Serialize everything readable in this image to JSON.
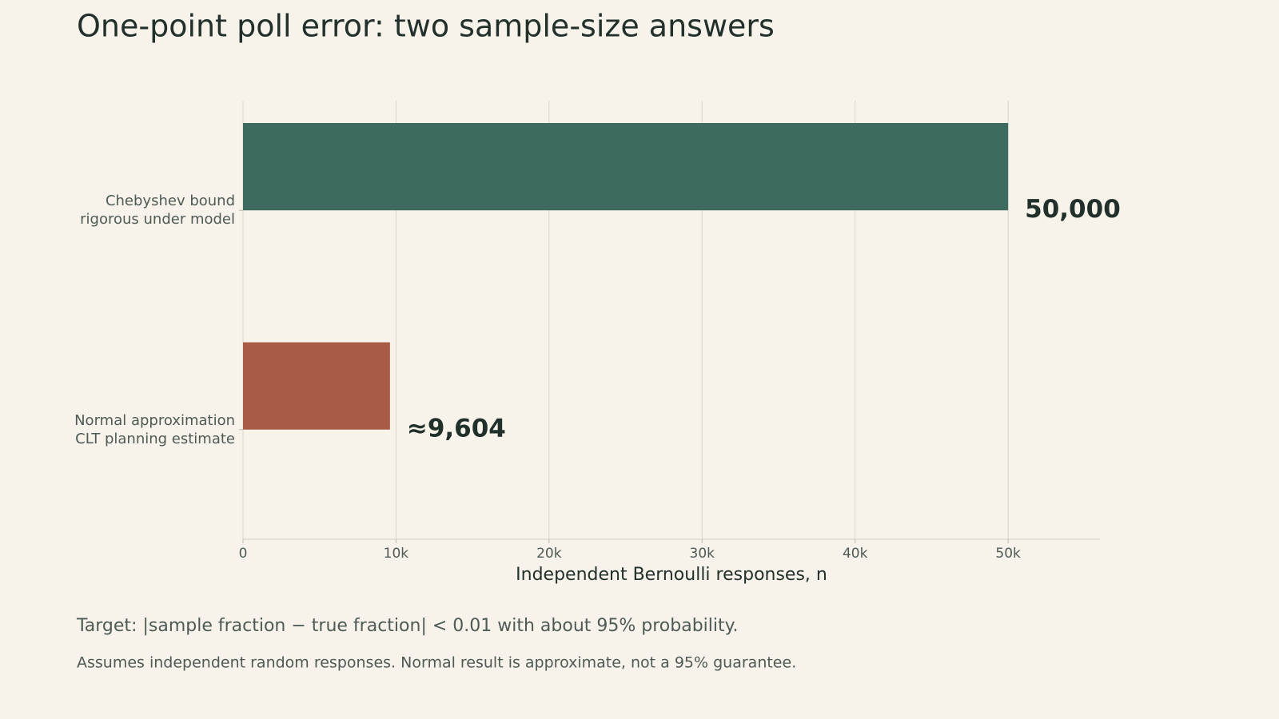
{
  "chart_data": {
    "type": "bar",
    "orientation": "horizontal",
    "title": "One-point poll error: two sample-size answers",
    "categories": [
      "Chebyshev bound\nrigorous under model",
      "Normal approximation\nCLT planning estimate"
    ],
    "values": [
      50000,
      9604
    ],
    "value_labels": [
      "50,000",
      "≈9,604"
    ],
    "colors": [
      "#3d6b5f",
      "#a95c45"
    ],
    "xlabel": "Independent Bernoulli responses, n",
    "xlim": [
      0,
      56000
    ],
    "xticks": [
      0,
      {
        "value": 10000,
        "label": "10k"
      },
      {
        "value": 20000,
        "label": "20k"
      },
      {
        "value": 30000,
        "label": "30k"
      },
      {
        "value": 40000,
        "label": "40k"
      },
      {
        "value": 50000,
        "label": "50k"
      }
    ],
    "grid": true,
    "notes": [
      "Target: |sample fraction − true fraction| < 0.01 with about 95% probability.",
      "Assumes independent random responses. Normal result is approximate, not a 95% guarantee."
    ]
  }
}
